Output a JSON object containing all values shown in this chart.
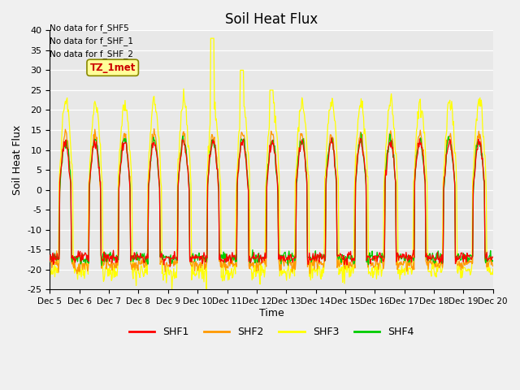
{
  "title": "Soil Heat Flux",
  "ylabel": "Soil Heat Flux",
  "xlabel": "Time",
  "ylim": [
    -25,
    40
  ],
  "yticks": [
    -25,
    -20,
    -15,
    -10,
    -5,
    0,
    5,
    10,
    15,
    20,
    25,
    30,
    35,
    40
  ],
  "xtick_labels": [
    "Dec 5",
    "Dec 6",
    "Dec 7",
    "Dec 8",
    "Dec 9",
    "Dec 10",
    "Dec 11",
    "Dec 12",
    "Dec 13",
    "Dec 14",
    "Dec 15",
    "Dec 16",
    "Dec 17",
    "Dec 18",
    "Dec 19",
    "Dec 20"
  ],
  "colors": {
    "SHF1": "#ff0000",
    "SHF2": "#ff9900",
    "SHF3": "#ffff00",
    "SHF4": "#00cc00"
  },
  "annotations": [
    "No data for f_SHF5",
    "No data for f_SHF_1",
    "No data for f_SHF_2"
  ],
  "cursor_label": "TZ_1met",
  "fig_bg": "#f0f0f0",
  "plot_bg": "#e8e8e8",
  "n_days": 15,
  "n_pts_per_day": 48,
  "line_width": 0.9
}
